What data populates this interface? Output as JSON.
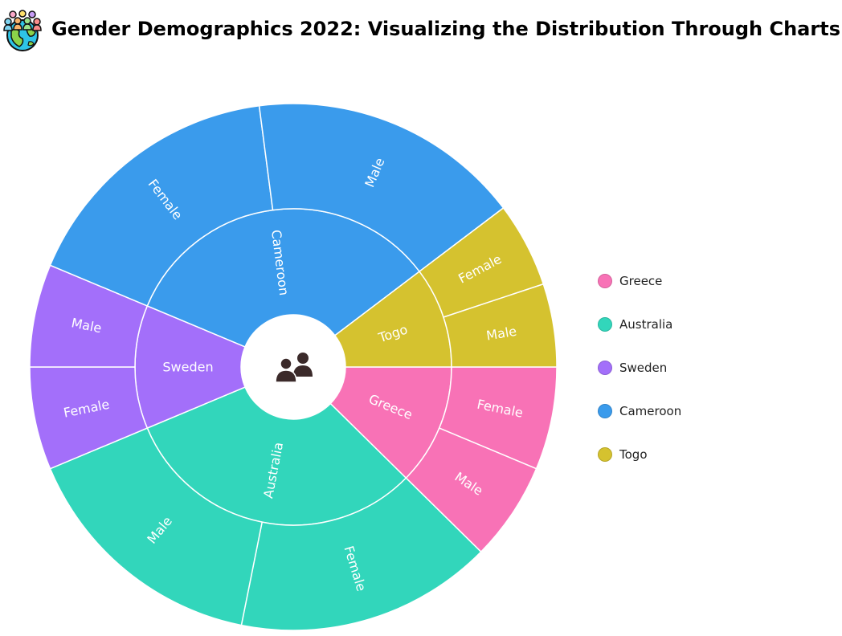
{
  "header": {
    "title": "Gender Demographics 2022: Visualizing the Distribution Through Charts",
    "icon": "world-population-icon"
  },
  "chart_data": {
    "type": "sunburst",
    "title": "Gender Demographics 2022: Visualizing the Distribution Through Charts",
    "center_icon": "people-icon",
    "legend_position": "right",
    "hierarchy": [
      {
        "name": "Greece",
        "color": "#f872b6",
        "children": [
          {
            "name": "Female",
            "value": 5.2
          },
          {
            "name": "Male",
            "value": 5.0
          }
        ]
      },
      {
        "name": "Australia",
        "color": "#32d6bb",
        "children": [
          {
            "name": "Female",
            "value": 13.0
          },
          {
            "name": "Male",
            "value": 12.8
          }
        ]
      },
      {
        "name": "Sweden",
        "color": "#a36ffa",
        "children": [
          {
            "name": "Female",
            "value": 5.2
          },
          {
            "name": "Male",
            "value": 5.2
          }
        ]
      },
      {
        "name": "Cameroon",
        "color": "#3a9bec",
        "children": [
          {
            "name": "Female",
            "value": 13.7
          },
          {
            "name": "Male",
            "value": 13.8
          }
        ]
      },
      {
        "name": "Togo",
        "color": "#d5c22f",
        "children": [
          {
            "name": "Female",
            "value": 4.3
          },
          {
            "name": "Male",
            "value": 4.2
          }
        ]
      }
    ]
  },
  "legend": {
    "items": [
      {
        "label": "Greece",
        "color": "#f872b6"
      },
      {
        "label": "Australia",
        "color": "#32d6bb"
      },
      {
        "label": "Sweden",
        "color": "#a36ffa"
      },
      {
        "label": "Cameroon",
        "color": "#3a9bec"
      },
      {
        "label": "Togo",
        "color": "#d5c22f"
      }
    ]
  }
}
